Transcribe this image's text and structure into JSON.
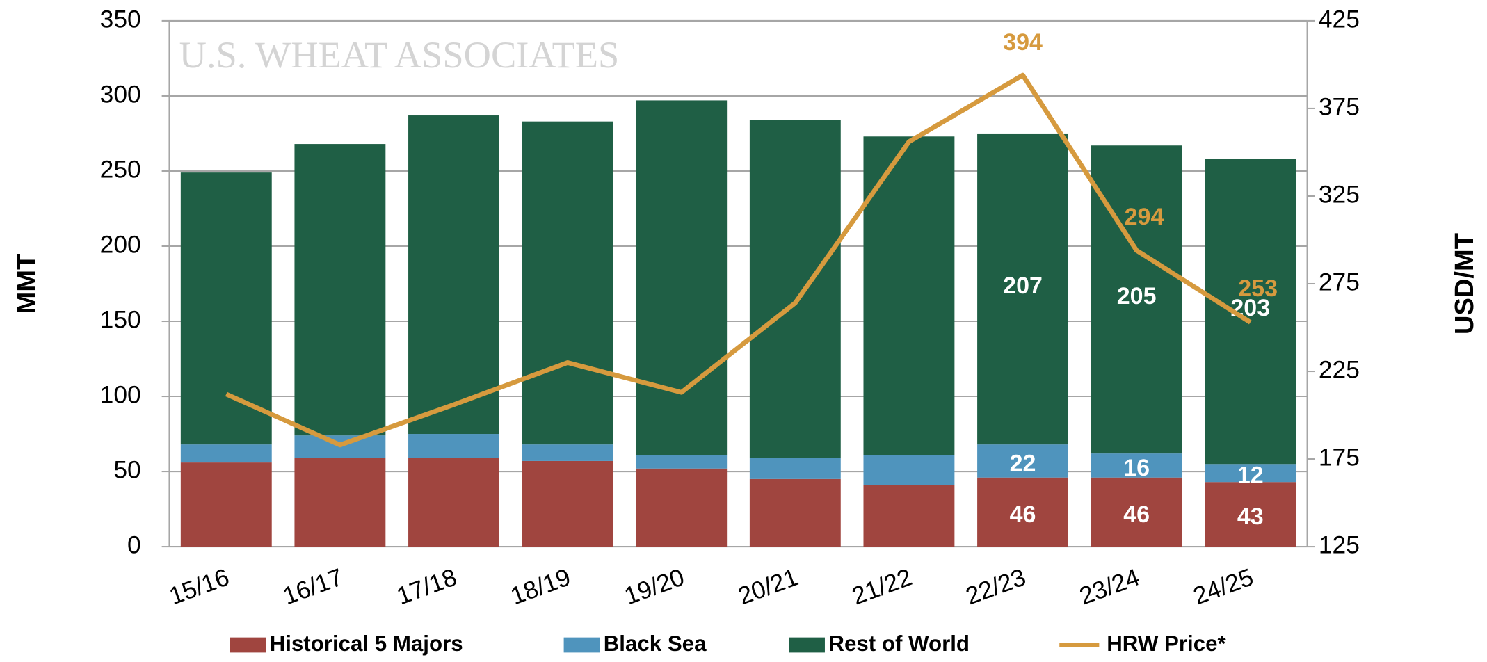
{
  "chart_data": {
    "type": "bar",
    "stacked": true,
    "watermark": "U.S. WHEAT ASSOCIATES",
    "ylabel": "MMT",
    "y2label": "USD/MT",
    "categories": [
      "15/16",
      "16/17",
      "17/18",
      "18/19",
      "19/20",
      "20/21",
      "21/22",
      "22/23",
      "23/24",
      "24/25"
    ],
    "series": [
      {
        "name": "Historical 5 Majors",
        "color": "#a0453f",
        "type": "bar",
        "values": [
          56,
          59,
          59,
          57,
          52,
          45,
          41,
          46,
          46,
          43
        ],
        "value_labels": [
          null,
          null,
          null,
          null,
          null,
          null,
          null,
          "46",
          "46",
          "43"
        ]
      },
      {
        "name": "Black Sea",
        "color": "#4f94bd",
        "type": "bar",
        "values": [
          12,
          15,
          16,
          11,
          9,
          14,
          20,
          22,
          16,
          12
        ],
        "value_labels": [
          null,
          null,
          null,
          null,
          null,
          null,
          null,
          "22",
          "16",
          "12"
        ]
      },
      {
        "name": "Rest of World",
        "color": "#1f5f45",
        "type": "bar",
        "values": [
          181,
          194,
          212,
          215,
          236,
          225,
          212,
          207,
          205,
          203
        ],
        "value_labels": [
          null,
          null,
          null,
          null,
          null,
          null,
          null,
          "207",
          "205",
          "203"
        ]
      },
      {
        "name": "HRW Price*",
        "color": "#d69a3e",
        "type": "line",
        "axis": "y2",
        "values": [
          212,
          183,
          206,
          230,
          213,
          264,
          356,
          394,
          294,
          253
        ],
        "value_labels": [
          null,
          null,
          null,
          null,
          null,
          null,
          null,
          "394",
          "294",
          "253"
        ]
      }
    ],
    "ylim": [
      0,
      350
    ],
    "yticks": [
      0,
      50,
      100,
      150,
      200,
      250,
      300,
      350
    ],
    "y2lim": [
      125,
      425
    ],
    "y2ticks": [
      125,
      175,
      225,
      275,
      325,
      375,
      425
    ],
    "grid": true,
    "legend": "bottom"
  }
}
